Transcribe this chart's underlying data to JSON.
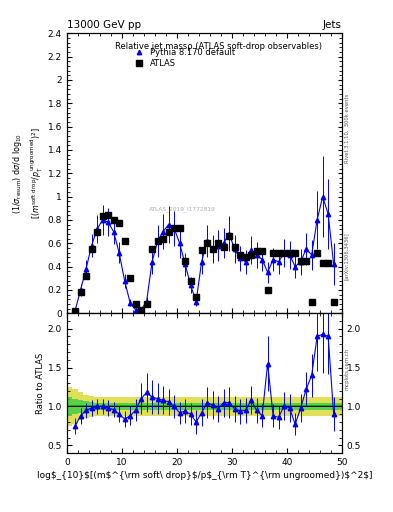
{
  "title_left": "13000 GeV pp",
  "title_right": "Jets",
  "plot_title": "Relative jet massρ (ATLAS soft-drop observables)",
  "right_label1": "Rivet 3.1.10,  300k events",
  "right_label2": "[arXiv:1306.3436]",
  "right_label3": "mcplots.cern.ch",
  "watermark": "ATLAS_2019_I1772819",
  "atlas_x": [
    1.5,
    2.5,
    3.5,
    4.5,
    5.5,
    6.5,
    7.5,
    8.5,
    9.5,
    10.5,
    11.5,
    12.5,
    13.5,
    14.5,
    15.5,
    16.5,
    17.5,
    18.5,
    19.5,
    20.5,
    21.5,
    22.5,
    23.5,
    24.5,
    25.5,
    26.5,
    27.5,
    28.5,
    29.5,
    30.5,
    31.5,
    32.5,
    33.5,
    34.5,
    35.5,
    36.5,
    37.5,
    38.5,
    39.5,
    40.5,
    41.5,
    42.5,
    43.5,
    44.5,
    45.5,
    46.5,
    47.5,
    48.5
  ],
  "atlas_y": [
    0.02,
    0.18,
    0.32,
    0.55,
    0.7,
    0.83,
    0.84,
    0.8,
    0.77,
    0.62,
    0.3,
    0.08,
    0.03,
    0.08,
    0.55,
    0.62,
    0.64,
    0.7,
    0.73,
    0.73,
    0.45,
    0.28,
    0.14,
    0.54,
    0.6,
    0.55,
    0.6,
    0.57,
    0.66,
    0.57,
    0.5,
    0.48,
    0.5,
    0.53,
    0.53,
    0.2,
    0.52,
    0.52,
    0.52,
    0.52,
    0.52,
    0.45,
    0.45,
    0.1,
    0.52,
    0.43,
    0.43,
    0.1
  ],
  "pythia_x": [
    1.5,
    2.5,
    3.5,
    4.5,
    5.5,
    6.5,
    7.5,
    8.5,
    9.5,
    10.5,
    11.5,
    12.5,
    13.5,
    14.5,
    15.5,
    16.5,
    17.5,
    18.5,
    19.5,
    20.5,
    21.5,
    22.5,
    23.5,
    24.5,
    25.5,
    26.5,
    27.5,
    28.5,
    29.5,
    30.5,
    31.5,
    32.5,
    33.5,
    34.5,
    35.5,
    36.5,
    37.5,
    38.5,
    39.5,
    40.5,
    41.5,
    42.5,
    43.5,
    44.5,
    45.5,
    46.5,
    47.5,
    48.5
  ],
  "pythia_y": [
    0.02,
    0.2,
    0.38,
    0.58,
    0.72,
    0.8,
    0.78,
    0.7,
    0.52,
    0.28,
    0.09,
    0.03,
    0.03,
    0.1,
    0.44,
    0.62,
    0.7,
    0.76,
    0.73,
    0.6,
    0.42,
    0.24,
    0.1,
    0.44,
    0.62,
    0.55,
    0.58,
    0.6,
    0.68,
    0.55,
    0.47,
    0.44,
    0.54,
    0.5,
    0.46,
    0.35,
    0.46,
    0.44,
    0.52,
    0.5,
    0.4,
    0.44,
    0.55,
    0.5,
    0.8,
    1.0,
    0.85,
    0.42
  ],
  "pythia_yerr": [
    0.01,
    0.05,
    0.08,
    0.1,
    0.12,
    0.13,
    0.12,
    0.11,
    0.09,
    0.06,
    0.03,
    0.02,
    0.02,
    0.04,
    0.1,
    0.14,
    0.15,
    0.16,
    0.15,
    0.13,
    0.1,
    0.07,
    0.04,
    0.1,
    0.14,
    0.12,
    0.13,
    0.13,
    0.15,
    0.12,
    0.11,
    0.1,
    0.12,
    0.11,
    0.1,
    0.09,
    0.1,
    0.1,
    0.12,
    0.12,
    0.1,
    0.11,
    0.14,
    0.13,
    0.25,
    0.35,
    0.3,
    0.18
  ],
  "ratio_x": [
    1.5,
    2.5,
    3.5,
    4.5,
    5.5,
    6.5,
    7.5,
    8.5,
    9.5,
    10.5,
    11.5,
    12.5,
    13.5,
    14.5,
    15.5,
    16.5,
    17.5,
    18.5,
    19.5,
    20.5,
    21.5,
    22.5,
    23.5,
    24.5,
    25.5,
    26.5,
    27.5,
    28.5,
    29.5,
    30.5,
    31.5,
    32.5,
    33.5,
    34.5,
    35.5,
    36.5,
    37.5,
    38.5,
    39.5,
    40.5,
    41.5,
    42.5,
    43.5,
    44.5,
    45.5,
    46.5,
    47.5,
    48.5
  ],
  "ratio_y": [
    0.75,
    0.88,
    0.95,
    0.98,
    1.0,
    1.0,
    0.98,
    0.96,
    0.9,
    0.84,
    0.88,
    0.95,
    1.1,
    1.18,
    1.12,
    1.1,
    1.08,
    1.06,
    1.0,
    0.92,
    0.94,
    0.9,
    0.8,
    0.92,
    1.05,
    1.02,
    0.97,
    1.05,
    1.05,
    0.97,
    0.94,
    0.95,
    1.08,
    0.95,
    0.88,
    1.55,
    0.88,
    0.86,
    1.01,
    0.98,
    0.77,
    0.98,
    1.22,
    1.4,
    1.9,
    1.93,
    1.9,
    0.9
  ],
  "ratio_yerr": [
    0.1,
    0.1,
    0.1,
    0.1,
    0.1,
    0.1,
    0.1,
    0.1,
    0.1,
    0.1,
    0.12,
    0.14,
    0.2,
    0.25,
    0.22,
    0.2,
    0.18,
    0.17,
    0.15,
    0.14,
    0.15,
    0.14,
    0.16,
    0.17,
    0.2,
    0.18,
    0.17,
    0.18,
    0.2,
    0.17,
    0.16,
    0.16,
    0.18,
    0.16,
    0.15,
    0.35,
    0.15,
    0.15,
    0.18,
    0.18,
    0.14,
    0.18,
    0.22,
    0.28,
    0.45,
    0.5,
    0.48,
    0.22
  ],
  "band_edges": [
    0,
    1,
    2,
    3,
    4,
    5,
    6,
    7,
    8,
    9,
    10,
    11,
    12,
    13,
    14,
    15,
    16,
    17,
    18,
    19,
    20,
    21,
    22,
    23,
    24,
    25,
    26,
    27,
    28,
    29,
    30,
    31,
    32,
    33,
    34,
    35,
    36,
    37,
    38,
    39,
    40,
    41,
    42,
    43,
    44,
    45,
    46,
    47,
    48,
    49,
    50
  ],
  "band_yellow_low": [
    0.75,
    0.78,
    0.82,
    0.85,
    0.87,
    0.88,
    0.88,
    0.88,
    0.88,
    0.88,
    0.88,
    0.88,
    0.88,
    0.88,
    0.88,
    0.88,
    0.88,
    0.88,
    0.88,
    0.88,
    0.88,
    0.88,
    0.88,
    0.88,
    0.88,
    0.88,
    0.88,
    0.88,
    0.88,
    0.88,
    0.88,
    0.88,
    0.88,
    0.88,
    0.88,
    0.88,
    0.88,
    0.88,
    0.88,
    0.88,
    0.88,
    0.88,
    0.88,
    0.88,
    0.88,
    0.88,
    0.88,
    0.88,
    0.88,
    0.88,
    0.88
  ],
  "band_yellow_high": [
    1.25,
    1.22,
    1.18,
    1.15,
    1.13,
    1.12,
    1.12,
    1.12,
    1.12,
    1.12,
    1.12,
    1.12,
    1.12,
    1.12,
    1.12,
    1.12,
    1.12,
    1.12,
    1.12,
    1.12,
    1.12,
    1.12,
    1.12,
    1.12,
    1.12,
    1.12,
    1.12,
    1.12,
    1.12,
    1.12,
    1.12,
    1.12,
    1.12,
    1.12,
    1.12,
    1.12,
    1.12,
    1.12,
    1.12,
    1.12,
    1.12,
    1.12,
    1.12,
    1.12,
    1.12,
    1.12,
    1.12,
    1.12,
    1.12,
    1.12,
    1.12
  ],
  "band_green_low": [
    0.88,
    0.9,
    0.92,
    0.93,
    0.94,
    0.95,
    0.95,
    0.95,
    0.95,
    0.95,
    0.95,
    0.95,
    0.95,
    0.95,
    0.95,
    0.95,
    0.95,
    0.95,
    0.95,
    0.95,
    0.95,
    0.95,
    0.95,
    0.95,
    0.95,
    0.95,
    0.95,
    0.95,
    0.95,
    0.95,
    0.95,
    0.95,
    0.95,
    0.95,
    0.95,
    0.95,
    0.95,
    0.95,
    0.95,
    0.95,
    0.95,
    0.95,
    0.95,
    0.95,
    0.95,
    0.95,
    0.95,
    0.95,
    0.95,
    0.95,
    0.95
  ],
  "band_green_high": [
    1.12,
    1.1,
    1.08,
    1.07,
    1.06,
    1.05,
    1.05,
    1.05,
    1.05,
    1.05,
    1.05,
    1.05,
    1.05,
    1.05,
    1.05,
    1.05,
    1.05,
    1.05,
    1.05,
    1.05,
    1.05,
    1.05,
    1.05,
    1.05,
    1.05,
    1.05,
    1.05,
    1.05,
    1.05,
    1.05,
    1.05,
    1.05,
    1.05,
    1.05,
    1.05,
    1.05,
    1.05,
    1.05,
    1.05,
    1.05,
    1.05,
    1.05,
    1.05,
    1.05,
    1.05,
    1.05,
    1.05,
    1.05,
    1.05,
    1.05,
    1.05
  ],
  "main_ylim": [
    0,
    2.4
  ],
  "ratio_ylim": [
    0.4,
    2.2
  ],
  "xlim": [
    0,
    50
  ],
  "blue_color": "#0000EE",
  "green_line_color": "#00AA00",
  "green_band_color": "#44CC44",
  "yellow_band_color": "#DDDD44",
  "atlas_color": "black",
  "bg_color": "white",
  "main_yticks": [
    0,
    0.2,
    0.4,
    0.6,
    0.8,
    1.0,
    1.2,
    1.4,
    1.6,
    1.8,
    2.0,
    2.2,
    2.4
  ],
  "ratio_yticks": [
    0.5,
    1.0,
    1.5,
    2.0
  ],
  "xticks": [
    0,
    10,
    20,
    30,
    40,
    50
  ]
}
